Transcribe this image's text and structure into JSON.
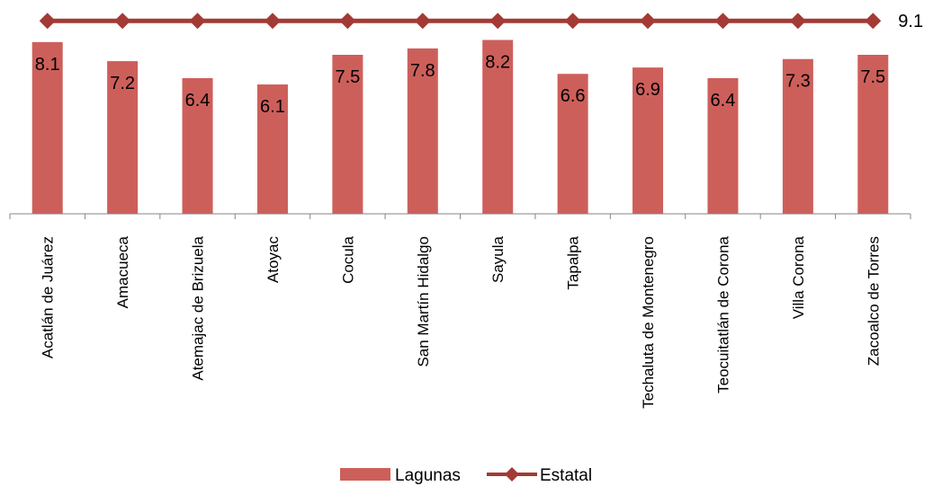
{
  "chart_data": {
    "type": "bar",
    "categories": [
      "Acatlán de Juárez",
      "Amacueca",
      "Atemajac de Brizuela",
      "Atoyac",
      "Cocula",
      "San Martín Hidalgo",
      "Sayula",
      "Tapalpa",
      "Techaluta de Montenegro",
      "Teocuitatlán de Corona",
      "Villa Corona",
      "Zacoalco de Torres"
    ],
    "series": [
      {
        "name": "Lagunas",
        "type": "bar",
        "color": "#CD5F5B",
        "values": [
          8.1,
          7.2,
          6.4,
          6.1,
          7.5,
          7.8,
          8.2,
          6.6,
          6.9,
          6.4,
          7.3,
          7.5
        ],
        "labels": [
          "8.1",
          "7.2",
          "6.4",
          "6.1",
          "7.5",
          "7.8",
          "8.2",
          "6.6",
          "6.9",
          "6.4",
          "7.3",
          "7.5"
        ]
      },
      {
        "name": "Estatal",
        "type": "line",
        "color": "#A33A35",
        "marker": "diamond",
        "values": [
          9.1,
          9.1,
          9.1,
          9.1,
          9.1,
          9.1,
          9.1,
          9.1,
          9.1,
          9.1,
          9.1,
          9.1
        ],
        "end_label": "9.1"
      }
    ],
    "title": "",
    "xlabel": "",
    "ylabel": "",
    "legend": "bottom",
    "grid": false
  }
}
